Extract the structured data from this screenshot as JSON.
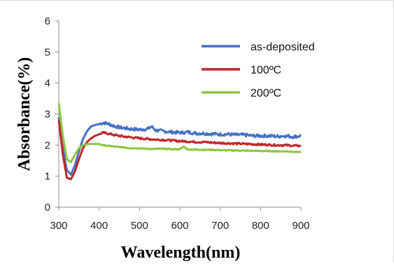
{
  "chart_data": {
    "type": "line",
    "title": "",
    "xlabel": "Wavelength(nm)",
    "ylabel": "Absorbance(%)",
    "xlim": [
      300,
      900
    ],
    "ylim": [
      0,
      6
    ],
    "xticks": [
      300,
      400,
      500,
      600,
      700,
      800,
      900
    ],
    "yticks": [
      0,
      1,
      2,
      3,
      4,
      5,
      6
    ],
    "grid": false,
    "legend_position": "top-right",
    "series": [
      {
        "name": "as-deposited",
        "color": "#4472C4",
        "x": [
          300,
          310,
          320,
          330,
          340,
          350,
          360,
          370,
          380,
          390,
          400,
          410,
          420,
          440,
          460,
          480,
          500,
          520,
          530,
          540,
          560,
          580,
          600,
          620,
          640,
          660,
          680,
          700,
          720,
          740,
          760,
          780,
          800,
          820,
          840,
          860,
          880,
          900
        ],
        "y": [
          2.9,
          1.9,
          1.2,
          1.05,
          1.35,
          1.8,
          2.2,
          2.45,
          2.6,
          2.65,
          2.68,
          2.72,
          2.7,
          2.6,
          2.55,
          2.52,
          2.5,
          2.52,
          2.6,
          2.48,
          2.45,
          2.42,
          2.4,
          2.42,
          2.38,
          2.38,
          2.36,
          2.35,
          2.35,
          2.33,
          2.33,
          2.3,
          2.3,
          2.3,
          2.28,
          2.3,
          2.27,
          2.3
        ]
      },
      {
        "name": "100ºC",
        "color": "#C0272D",
        "x": [
          300,
          310,
          320,
          330,
          340,
          350,
          360,
          370,
          380,
          390,
          400,
          410,
          420,
          440,
          460,
          480,
          500,
          520,
          540,
          560,
          580,
          600,
          620,
          640,
          660,
          680,
          700,
          720,
          740,
          760,
          780,
          800,
          820,
          840,
          860,
          880,
          900
        ],
        "y": [
          2.8,
          1.7,
          0.95,
          0.9,
          1.15,
          1.55,
          1.9,
          2.1,
          2.22,
          2.3,
          2.35,
          2.4,
          2.38,
          2.32,
          2.28,
          2.25,
          2.22,
          2.2,
          2.18,
          2.17,
          2.15,
          2.13,
          2.12,
          2.1,
          2.1,
          2.08,
          2.07,
          2.06,
          2.05,
          2.04,
          2.03,
          2.02,
          2.01,
          2.0,
          2.0,
          1.98,
          1.98
        ]
      },
      {
        "name": "200ºC",
        "color": "#8DC63F",
        "x": [
          300,
          310,
          320,
          330,
          340,
          350,
          360,
          370,
          380,
          390,
          400,
          410,
          420,
          440,
          460,
          480,
          500,
          520,
          540,
          560,
          580,
          600,
          610,
          620,
          640,
          660,
          680,
          700,
          720,
          740,
          760,
          780,
          800,
          820,
          840,
          860,
          880,
          900
        ],
        "y": [
          3.35,
          2.3,
          1.55,
          1.45,
          1.7,
          1.9,
          2.0,
          2.03,
          2.04,
          2.04,
          2.03,
          2.0,
          1.98,
          1.95,
          1.93,
          1.9,
          1.9,
          1.88,
          1.88,
          1.88,
          1.87,
          1.87,
          1.95,
          1.86,
          1.86,
          1.85,
          1.85,
          1.84,
          1.83,
          1.83,
          1.82,
          1.82,
          1.81,
          1.81,
          1.8,
          1.8,
          1.79,
          1.78
        ]
      }
    ]
  }
}
